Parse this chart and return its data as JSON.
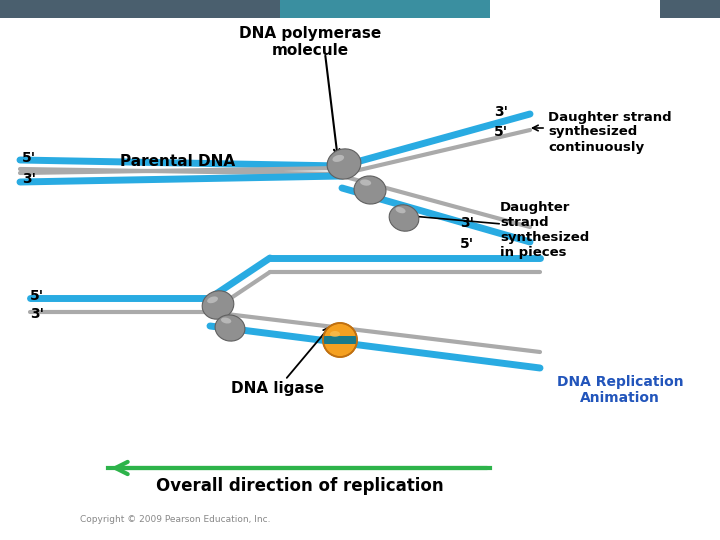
{
  "bg_color": "#ffffff",
  "header_color": "#4a5f6e",
  "header2_color": "#3a8fa0",
  "blue_strand": "#29abe2",
  "gray_strand": "#aaaaaa",
  "green_arrow": "#2db34a",
  "orange_circle": "#f5a020",
  "text_color": "#000000",
  "link_color": "#2255bb",
  "poly_face": "#909090",
  "poly_edge": "#606060",
  "poly_hi": "#c8c8c8",
  "title_text": "DNA polymerase\nmolecule",
  "parental_dna": "Parental DNA",
  "daughter_continuous": "Daughter strand\nsynthesized\ncontinuously",
  "daughter_pieces": "Daughter\nstrand\nsynthesized\nin pieces",
  "dna_ligase": "DNA ligase",
  "overall_direction": "Overall direction of replication",
  "dna_replication": "DNA Replication\nAnimation",
  "copyright": "Copyright © 2009 Pearson Education, Inc."
}
